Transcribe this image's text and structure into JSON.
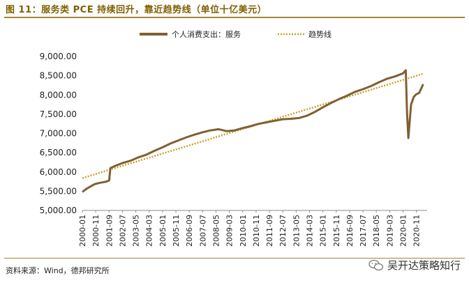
{
  "figure_title": "图 11：服务类 PCE 持续回升，靠近趋势线（单位十亿美元）",
  "source_note": "资料来源：Wind，德邦研究所",
  "watermark_text": "吴开达策略知行",
  "chart_data": {
    "type": "line",
    "title": "图 11：服务类 PCE 持续回升，靠近趋势线（单位十亿美元）",
    "ylim": [
      5000,
      9000
    ],
    "y_ticks": [
      "5,000.00",
      "5,500.00",
      "6,000.00",
      "6,500.00",
      "7,000.00",
      "7,500.00",
      "8,000.00",
      "8,500.00",
      "9,000.00"
    ],
    "y_tick_values": [
      5000,
      5500,
      6000,
      6500,
      7000,
      7500,
      8000,
      8500,
      9000
    ],
    "x_range": [
      2000.0,
      2021.5
    ],
    "x_tick_labels": [
      "2000-01",
      "2000-11",
      "2001-09",
      "2002-07",
      "2003-05",
      "2004-03",
      "2005-01",
      "2005-11",
      "2006-09",
      "2007-07",
      "2008-05",
      "2009-03",
      "2010-01",
      "2010-11",
      "2011-09",
      "2012-07",
      "2013-05",
      "2014-03",
      "2015-01",
      "2015-11",
      "2016-09",
      "2017-07",
      "2018-05",
      "2019-03",
      "2020-01",
      "2020-11"
    ],
    "x_tick_values": [
      2000.0,
      2000.833,
      2001.667,
      2002.5,
      2003.333,
      2004.167,
      2005.0,
      2005.833,
      2006.667,
      2007.5,
      2008.333,
      2009.167,
      2010.0,
      2010.833,
      2011.667,
      2012.5,
      2013.333,
      2014.167,
      2015.0,
      2015.833,
      2016.667,
      2017.5,
      2018.333,
      2019.167,
      2020.0,
      2020.833
    ],
    "series": [
      {
        "name": "个人消费支出：服务",
        "color": "#7f6032",
        "x": [
          2000.0,
          2000.25,
          2000.5,
          2000.75,
          2001.0,
          2001.25,
          2001.5,
          2001.67,
          2001.75,
          2002.0,
          2002.5,
          2003.0,
          2003.5,
          2004.0,
          2004.5,
          2005.0,
          2005.5,
          2006.0,
          2006.5,
          2007.0,
          2007.5,
          2008.0,
          2008.5,
          2009.0,
          2009.5,
          2010.0,
          2010.5,
          2011.0,
          2011.5,
          2012.0,
          2012.5,
          2013.0,
          2013.5,
          2014.0,
          2014.5,
          2015.0,
          2015.5,
          2016.0,
          2016.5,
          2017.0,
          2017.5,
          2018.0,
          2018.5,
          2019.0,
          2019.5,
          2020.0,
          2020.17,
          2020.25,
          2020.33,
          2020.5,
          2020.67,
          2020.83,
          2021.0,
          2021.17,
          2021.25
        ],
        "values": [
          5480,
          5560,
          5620,
          5680,
          5710,
          5730,
          5750,
          5780,
          6100,
          6150,
          6230,
          6290,
          6380,
          6450,
          6550,
          6640,
          6740,
          6820,
          6900,
          6970,
          7030,
          7080,
          7110,
          7060,
          7080,
          7140,
          7190,
          7250,
          7290,
          7330,
          7370,
          7380,
          7400,
          7460,
          7560,
          7680,
          7790,
          7890,
          7980,
          8080,
          8150,
          8230,
          8330,
          8420,
          8480,
          8560,
          8640,
          7500,
          6880,
          7750,
          7950,
          8020,
          8050,
          8200,
          8280
        ]
      },
      {
        "name": "趋势线",
        "color": "#c9a227",
        "x": [
          2000.0,
          2021.25
        ],
        "values": [
          5840,
          8550
        ]
      }
    ]
  }
}
